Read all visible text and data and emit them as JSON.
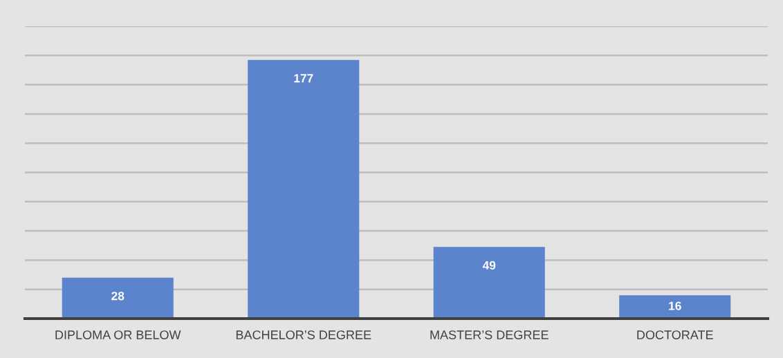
{
  "chart_data": {
    "type": "bar",
    "categories": [
      "DIPLOMA OR BELOW",
      "BACHELOR’S DEGREE",
      "MASTER’S DEGREE",
      "DOCTORATE"
    ],
    "values": [
      28,
      177,
      49,
      16
    ],
    "color": "#5b84cc",
    "ylim": [
      0,
      200
    ],
    "yticks": [
      {
        "value": 0,
        "label": null
      },
      {
        "value": 20,
        "label": null
      },
      {
        "value": 40,
        "label": null
      },
      {
        "value": 60,
        "label": null
      },
      {
        "value": 80,
        "label": null
      },
      {
        "value": 100,
        "label": null
      },
      {
        "value": 120,
        "label": null
      },
      {
        "value": 140,
        "label": null
      },
      {
        "value": 160,
        "label": null
      },
      {
        "value": 180,
        "label": null
      },
      {
        "value": 200,
        "label": null
      }
    ],
    "tick_labels": "x",
    "grid": "y",
    "legend": false,
    "data_labels": true
  }
}
